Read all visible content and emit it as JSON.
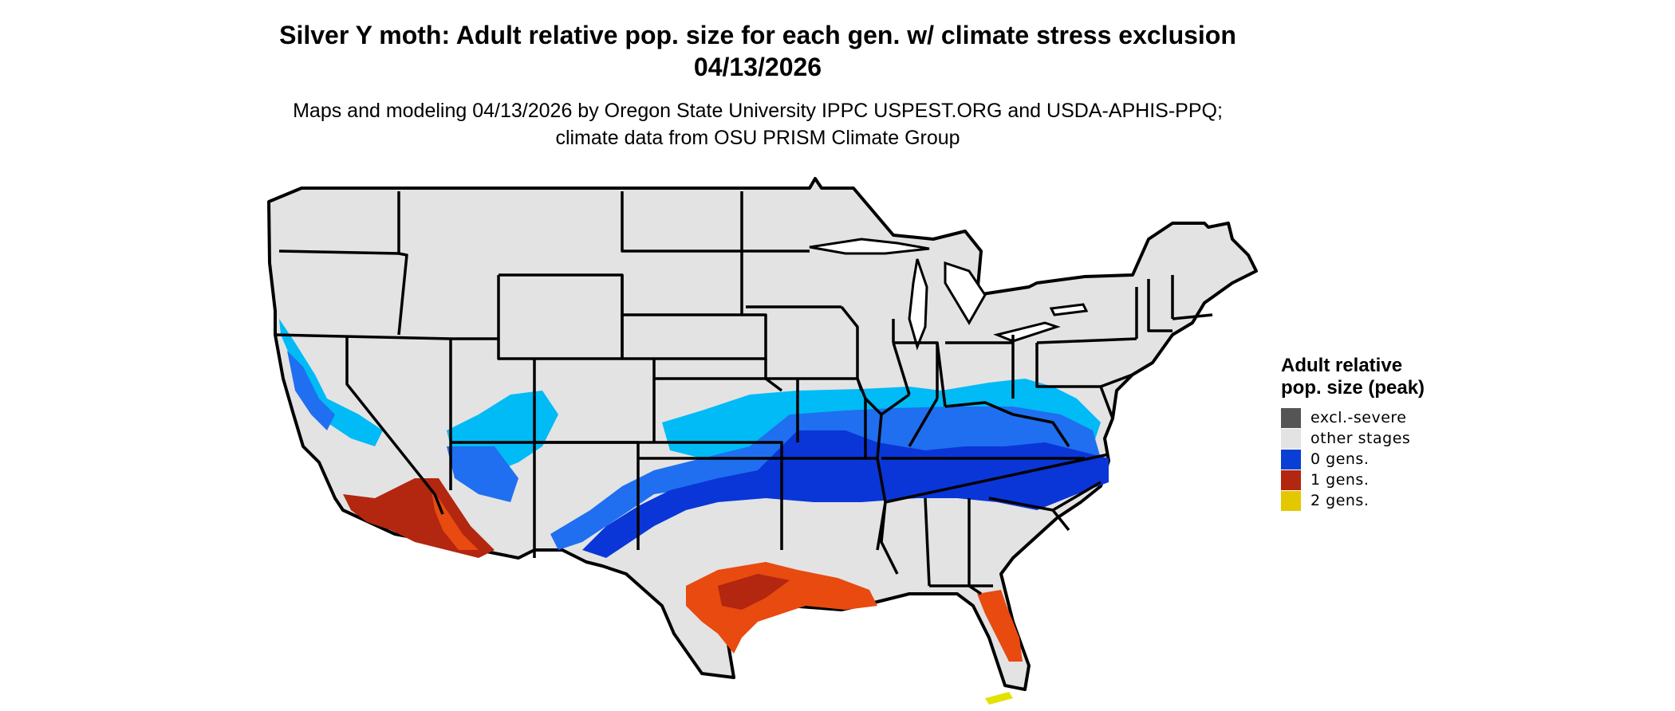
{
  "title": "Silver Y moth: Adult relative pop. size for each gen. w/ climate stress exclusion 04/13/2026",
  "subtitle": "Maps and modeling 04/13/2026 by Oregon State University IPPC USPEST.ORG and USDA-APHIS-PPQ; climate data from OSU PRISM Climate Group",
  "legend": {
    "title": "Adult relative pop. size (peak)",
    "items": [
      {
        "label": "excl.-severe",
        "color": "#555555"
      },
      {
        "label": "other stages",
        "color": "#e3e3e3"
      },
      {
        "label": "0 gens.",
        "color": "#0a3fd6"
      },
      {
        "label": "1 gens.",
        "color": "#b3260f"
      },
      {
        "label": "2 gens.",
        "color": "#e3c800"
      }
    ]
  },
  "colors": {
    "land": "#e3e3e3",
    "border": "#000000",
    "blue_dark": "#0a36d8",
    "blue_mid": "#1f6ff0",
    "blue_light": "#00bbf5",
    "red": "#b3260f",
    "orange": "#e84a10",
    "yellow": "#e3e100"
  }
}
